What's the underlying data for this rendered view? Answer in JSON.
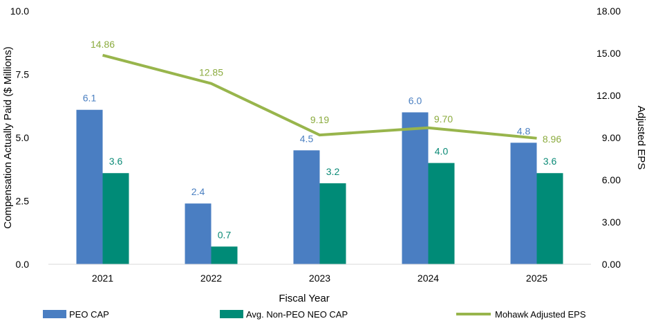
{
  "chart_data": {
    "type": "bar",
    "categories": [
      "2021",
      "2022",
      "2023",
      "2024",
      "2025"
    ],
    "series": [
      {
        "name": "PEO CAP",
        "kind": "bar",
        "axis": "left",
        "color": "#4a7ec2",
        "values": [
          6.1,
          2.4,
          4.5,
          6.0,
          4.8
        ],
        "labels": [
          "6.1",
          "2.4",
          "4.5",
          "6.0",
          "4.8"
        ]
      },
      {
        "name": "Avg. Non-PEO NEO CAP",
        "kind": "bar",
        "axis": "left",
        "color": "#008b77",
        "values": [
          3.6,
          0.7,
          3.2,
          4.0,
          3.6
        ],
        "labels": [
          "3.6",
          "0.7",
          "3.2",
          "4.0",
          "3.6"
        ]
      },
      {
        "name": "Mohawk Adjusted EPS",
        "kind": "line",
        "axis": "right",
        "color": "#98b54c",
        "values": [
          14.86,
          12.85,
          9.19,
          9.7,
          8.96
        ],
        "labels": [
          "14.86",
          "12.85",
          "9.19",
          "9.70",
          "8.96"
        ]
      }
    ],
    "xlabel": "Fiscal Year",
    "ylabel": "Compensation Actually Paid ($ Millions)",
    "y2label": "Adjusted EPS",
    "ylim": [
      0,
      10
    ],
    "y2lim": [
      0,
      18
    ],
    "yticks": [
      "0.0",
      "2.5",
      "5.0",
      "7.5",
      "10.0"
    ],
    "y2ticks": [
      "0.00",
      "3.00",
      "6.00",
      "9.00",
      "12.00",
      "15.00",
      "18.00"
    ],
    "grid": false,
    "legend_position": "bottom"
  }
}
